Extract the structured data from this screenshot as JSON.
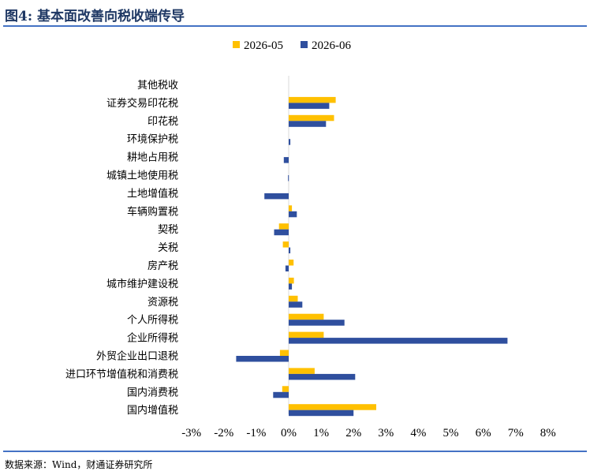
{
  "title": "图4: 基本面改善向税收端传导",
  "source": "数据来源：Wind，财通证券研究所",
  "colors": {
    "series1": "#ffc000",
    "series2": "#2f4f9e",
    "rule": "#4472c4",
    "zero_line": "#d9d9d9"
  },
  "chart_data": {
    "type": "bar",
    "orientation": "horizontal",
    "categories": [
      "其他税收",
      "证券交易印花税",
      "印花税",
      "环境保护税",
      "耕地占用税",
      "城镇土地使用税",
      "土地增值税",
      "车辆购置税",
      "契税",
      "关税",
      "房产税",
      "城市维护建设税",
      "资源税",
      "个人所得税",
      "企业所得税",
      "外贸企业出口退税",
      "进口环节增值税和消费税",
      "国内消费税",
      "国内增值税"
    ],
    "series": [
      {
        "name": "2026-05",
        "values": [
          0.0,
          1.45,
          1.4,
          0.0,
          0.0,
          0.0,
          0.0,
          0.1,
          -0.3,
          -0.18,
          0.15,
          0.16,
          0.28,
          1.08,
          1.08,
          -0.27,
          0.8,
          -0.2,
          2.7
        ]
      },
      {
        "name": "2026-06",
        "values": [
          0.0,
          1.25,
          1.15,
          0.05,
          -0.15,
          -0.02,
          -0.75,
          0.25,
          -0.45,
          0.05,
          -0.1,
          0.1,
          0.42,
          1.72,
          6.75,
          -1.62,
          2.05,
          -0.48,
          2.0
        ]
      }
    ],
    "xlim": [
      -3,
      8
    ],
    "xticks": [
      "-3%",
      "-2%",
      "-1%",
      "0%",
      "1%",
      "2%",
      "3%",
      "4%",
      "5%",
      "6%",
      "7%",
      "8%"
    ],
    "legend": "top-center",
    "grid": false
  }
}
